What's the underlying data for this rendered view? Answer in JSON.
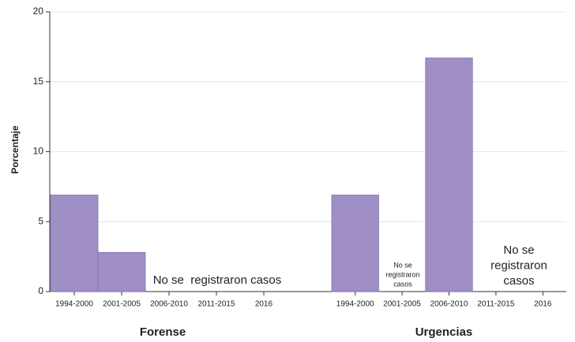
{
  "chart_data": {
    "type": "bar",
    "ylabel": "Porcentaje",
    "ylim": [
      0,
      20
    ],
    "yticks": [
      0,
      5,
      10,
      15,
      20
    ],
    "grid": true,
    "color": "#a08fc6",
    "panels": [
      {
        "title": "Forense",
        "categories": [
          "1994-2000",
          "2001-2005",
          "2006-2010",
          "2011-2015",
          "2016"
        ],
        "values": [
          6.9,
          2.8,
          null,
          null,
          null
        ],
        "annotations": [
          {
            "lines": [
              "No se  registraron casos"
            ]
          }
        ]
      },
      {
        "title": "Urgencias",
        "categories": [
          "1994-2000",
          "2001-2005",
          "2006-2010",
          "2011-2015",
          "2016"
        ],
        "values": [
          6.9,
          null,
          16.7,
          null,
          null
        ],
        "annotations": [
          {
            "lines": [
              "No se",
              "registraron",
              "casos"
            ]
          },
          {
            "lines": [
              "No se",
              "registraron",
              "casos"
            ]
          }
        ]
      }
    ]
  }
}
